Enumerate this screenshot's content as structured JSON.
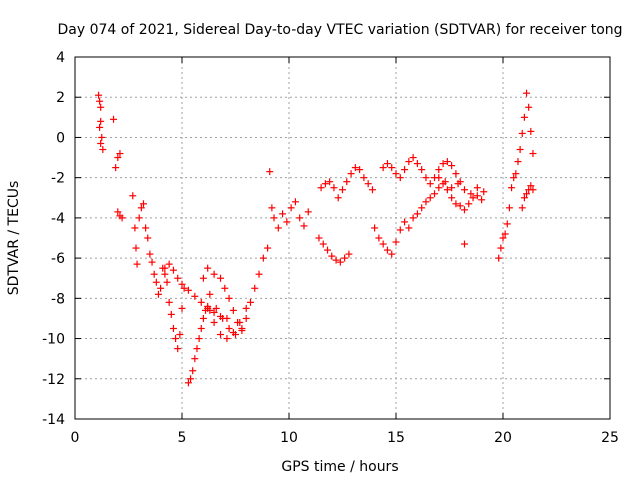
{
  "chart_data": {
    "type": "scatter",
    "title": "Day 074 of 2021, Sidereal Day-to-day VTEC variation (SDTVAR) for receiver tong",
    "xlabel": "GPS time / hours",
    "ylabel": "SDTVAR / TECUs",
    "xlim": [
      0,
      25
    ],
    "ylim": [
      -14,
      4
    ],
    "xticks": [
      0,
      5,
      10,
      15,
      20,
      25
    ],
    "yticks": [
      -14,
      -12,
      -10,
      -8,
      -6,
      -4,
      -2,
      0,
      2,
      4
    ],
    "grid": true,
    "marker": "+",
    "marker_color": "#ff0000",
    "series": [
      {
        "x": [
          1.1,
          1.15,
          1.2,
          1.25,
          1.3,
          1.2,
          1.15,
          1.2,
          1.8,
          1.9,
          2.0,
          2.1,
          2.0,
          2.1,
          2.2,
          2.7,
          2.8,
          2.85,
          2.9,
          3.0,
          3.1,
          3.2,
          3.3,
          3.4,
          3.5,
          3.6,
          3.7,
          3.8,
          3.9,
          4.0,
          4.1,
          4.2,
          4.3,
          4.4,
          4.5,
          4.6,
          4.7,
          4.8,
          4.9,
          5.0,
          5.1,
          4.2,
          4.4,
          4.6,
          4.8,
          5.0,
          5.3,
          5.6,
          5.9,
          6.2,
          6.5,
          6.8,
          7.1,
          5.3,
          5.4,
          5.5,
          5.6,
          5.7,
          5.8,
          5.9,
          6.0,
          6.1,
          6.2,
          6.3,
          6.5,
          6.8,
          7.1,
          7.4,
          7.7,
          8.0,
          6.2,
          6.5,
          6.8,
          7.0,
          7.2,
          7.4,
          7.6,
          7.8,
          8.0,
          8.2,
          8.4,
          8.6,
          8.8,
          9.0,
          6.0,
          6.3,
          6.6,
          6.9,
          7.2,
          7.5,
          7.8,
          9.1,
          9.2,
          9.3,
          9.5,
          9.7,
          9.9,
          10.1,
          10.3,
          10.5,
          10.7,
          10.9,
          11.4,
          11.6,
          11.8,
          12.0,
          12.2,
          12.4,
          12.6,
          12.8,
          11.5,
          11.7,
          11.9,
          12.1,
          12.3,
          12.5,
          12.7,
          12.9,
          13.1,
          13.3,
          13.5,
          13.7,
          13.9,
          14.0,
          14.2,
          14.4,
          14.6,
          14.8,
          15.0,
          15.2,
          15.4,
          14.4,
          14.6,
          14.8,
          15.0,
          15.2,
          15.4,
          15.6,
          15.8,
          16.0,
          16.2,
          16.4,
          16.6,
          16.8,
          17.0,
          17.2,
          17.4,
          17.6,
          17.8,
          18.0,
          15.6,
          15.8,
          16.0,
          16.2,
          16.4,
          16.6,
          16.8,
          17.0,
          17.2,
          17.4,
          17.6,
          17.8,
          18.0,
          18.2,
          18.4,
          18.6,
          18.8,
          19.0,
          17.0,
          17.3,
          17.6,
          17.9,
          18.2,
          18.5,
          18.8,
          19.1,
          18.2,
          19.8,
          19.9,
          20.0,
          20.1,
          20.2,
          20.3,
          20.4,
          20.5,
          20.6,
          20.7,
          20.8,
          20.9,
          21.0,
          21.1,
          21.2,
          21.3,
          21.4,
          20.9,
          21.0,
          21.1,
          21.2,
          21.3,
          21.4
        ],
        "y": [
          2.1,
          1.8,
          0.8,
          0.0,
          -0.6,
          -0.3,
          0.5,
          1.5,
          0.9,
          -1.5,
          -1.0,
          -0.8,
          -3.7,
          -3.9,
          -4.0,
          -2.9,
          -4.5,
          -5.5,
          -6.3,
          -4.0,
          -3.5,
          -3.3,
          -4.5,
          -5.0,
          -5.8,
          -6.2,
          -6.8,
          -7.2,
          -7.8,
          -7.5,
          -6.5,
          -6.8,
          -7.2,
          -8.2,
          -8.8,
          -9.5,
          -10.0,
          -10.5,
          -9.8,
          -8.5,
          -7.5,
          -6.5,
          -6.3,
          -6.6,
          -7.0,
          -7.3,
          -7.6,
          -7.9,
          -8.2,
          -8.5,
          -8.7,
          -8.9,
          -9.0,
          -12.2,
          -12.0,
          -11.6,
          -11.0,
          -10.5,
          -10.0,
          -9.5,
          -9.0,
          -8.6,
          -8.4,
          -8.6,
          -9.2,
          -9.8,
          -10.0,
          -9.7,
          -9.2,
          -8.5,
          -6.5,
          -6.8,
          -7.0,
          -7.5,
          -8.0,
          -8.6,
          -9.2,
          -9.5,
          -9.0,
          -8.2,
          -7.5,
          -6.8,
          -6.0,
          -5.5,
          -7.0,
          -7.8,
          -8.5,
          -9.0,
          -9.5,
          -9.8,
          -9.6,
          -1.7,
          -3.5,
          -4.0,
          -4.5,
          -3.8,
          -4.2,
          -3.5,
          -3.2,
          -4.0,
          -4.4,
          -3.7,
          -5.0,
          -5.3,
          -5.6,
          -5.9,
          -6.1,
          -6.2,
          -6.0,
          -5.8,
          -2.5,
          -2.3,
          -2.2,
          -2.5,
          -3.0,
          -2.6,
          -2.2,
          -1.8,
          -1.5,
          -1.6,
          -2.0,
          -2.3,
          -2.6,
          -4.5,
          -5.0,
          -5.3,
          -5.6,
          -5.8,
          -5.2,
          -4.6,
          -4.2,
          -1.5,
          -1.3,
          -1.5,
          -1.8,
          -2.0,
          -1.6,
          -1.2,
          -1.0,
          -1.3,
          -1.6,
          -2.0,
          -2.3,
          -2.0,
          -1.6,
          -1.3,
          -1.2,
          -1.4,
          -1.8,
          -2.2,
          -4.5,
          -4.0,
          -3.8,
          -3.5,
          -3.2,
          -3.0,
          -2.8,
          -2.5,
          -2.3,
          -2.6,
          -3.0,
          -3.3,
          -3.4,
          -3.6,
          -3.3,
          -3.0,
          -2.9,
          -3.1,
          -2.0,
          -2.2,
          -2.5,
          -2.3,
          -2.6,
          -2.8,
          -2.5,
          -2.7,
          -5.3,
          -6.0,
          -5.5,
          -5.0,
          -4.8,
          -4.3,
          -3.5,
          -2.5,
          -2.0,
          -1.8,
          -1.2,
          -0.6,
          0.2,
          1.0,
          2.2,
          1.5,
          0.3,
          -0.8,
          -3.5,
          -3.0,
          -2.8,
          -2.6,
          -2.4,
          -2.6
        ]
      }
    ]
  }
}
